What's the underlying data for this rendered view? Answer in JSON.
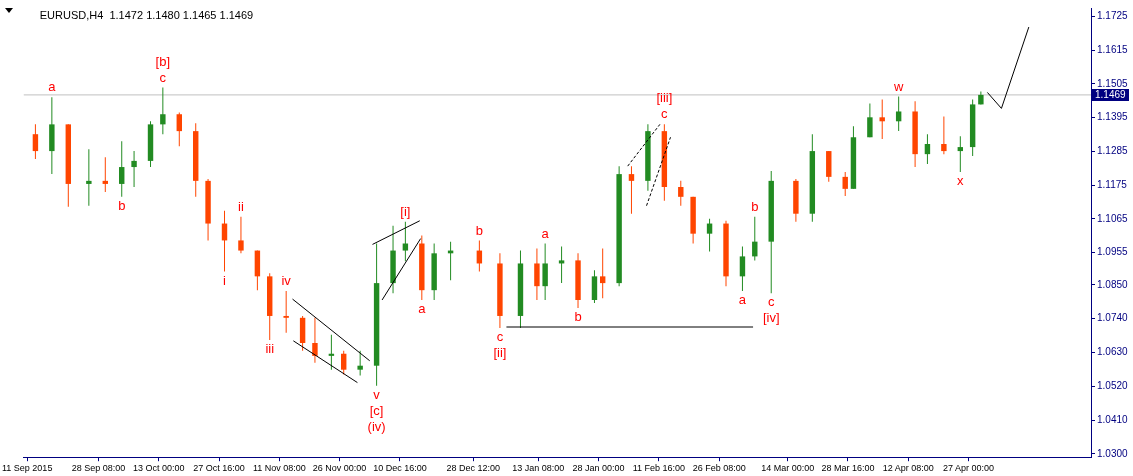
{
  "chart_data": {
    "type": "candlestick",
    "title": "EURUSD,H4  1.1472 1.1480 1.1465 1.1469",
    "x": [
      "2015-09-13",
      "2015-09-17",
      "2015-09-21",
      "2015-09-26",
      "2015-09-30",
      "2015-10-04",
      "2015-10-07",
      "2015-10-11",
      "2015-10-14",
      "2015-10-18",
      "2015-10-22",
      "2015-10-25",
      "2015-10-29",
      "2015-11-02",
      "2015-11-06",
      "2015-11-09",
      "2015-11-13",
      "2015-11-17",
      "2015-11-20",
      "2015-11-24",
      "2015-11-27",
      "2015-12-01",
      "2015-12-05",
      "2015-12-09",
      "2015-12-12",
      "2015-12-16",
      "2015-12-19",
      "2015-12-23",
      "2015-12-30",
      "2016-01-04",
      "2016-01-09",
      "2016-01-13",
      "2016-01-15",
      "2016-01-19",
      "2016-01-23",
      "2016-01-27",
      "2016-01-29",
      "2016-02-02",
      "2016-02-05",
      "2016-02-09",
      "2016-02-13",
      "2016-02-17",
      "2016-02-20",
      "2016-02-24",
      "2016-02-28",
      "2016-03-03",
      "2016-03-06",
      "2016-03-10",
      "2016-03-16",
      "2016-03-20",
      "2016-03-24",
      "2016-03-28",
      "2016-03-30",
      "2016-04-03",
      "2016-04-06",
      "2016-04-10",
      "2016-04-14",
      "2016-04-17",
      "2016-04-21",
      "2016-04-25",
      "2016-04-28",
      "2016-04-30"
    ],
    "ohlc": [
      [
        1.1341,
        1.1373,
        1.126,
        1.1286
      ],
      [
        1.1286,
        1.1461,
        1.1211,
        1.1373
      ],
      [
        1.1373,
        1.1373,
        1.1105,
        1.1179
      ],
      [
        1.1179,
        1.1292,
        1.1108,
        1.1189
      ],
      [
        1.1189,
        1.1266,
        1.1153,
        1.1179
      ],
      [
        1.1179,
        1.1318,
        1.1137,
        1.1234
      ],
      [
        1.1234,
        1.1286,
        1.1169,
        1.1254
      ],
      [
        1.1254,
        1.1383,
        1.1234,
        1.1373
      ],
      [
        1.1373,
        1.1493,
        1.1341,
        1.1406
      ],
      [
        1.1406,
        1.1412,
        1.1302,
        1.1351
      ],
      [
        1.1351,
        1.1377,
        1.1137,
        1.1189
      ],
      [
        1.1189,
        1.1195,
        1.0995,
        1.105
      ],
      [
        1.105,
        1.1092,
        1.0894,
        1.0995
      ],
      [
        1.0995,
        1.1072,
        1.0953,
        1.0962
      ],
      [
        1.0962,
        1.0962,
        1.0833,
        1.0878
      ],
      [
        1.0878,
        1.0888,
        1.0671,
        1.0749
      ],
      [
        1.0749,
        1.083,
        1.0694,
        1.0743
      ],
      [
        1.0743,
        1.0749,
        1.0636,
        1.0661
      ],
      [
        1.0661,
        1.0743,
        1.0597,
        1.0619
      ],
      [
        1.0619,
        1.0688,
        1.0574,
        1.0626
      ],
      [
        1.0626,
        1.0636,
        1.0558,
        1.0574
      ],
      [
        1.0574,
        1.0636,
        1.0555,
        1.0587
      ],
      [
        1.0587,
        1.0985,
        1.0522,
        1.0856
      ],
      [
        1.0856,
        1.1043,
        1.0823,
        1.0962
      ],
      [
        1.0962,
        1.1056,
        1.0927,
        1.0985
      ],
      [
        1.0985,
        1.1011,
        1.0801,
        1.0833
      ],
      [
        1.0833,
        1.0985,
        1.0801,
        1.0953
      ],
      [
        1.0953,
        1.0991,
        1.0865,
        1.0962
      ],
      [
        1.0962,
        1.0995,
        1.0894,
        1.092
      ],
      [
        1.092,
        1.0953,
        1.071,
        1.0749
      ],
      [
        1.0749,
        1.0962,
        1.071,
        1.092
      ],
      [
        1.092,
        1.0969,
        1.0801,
        1.0846
      ],
      [
        1.0846,
        1.0985,
        1.0801,
        1.092
      ],
      [
        1.092,
        1.0975,
        1.0856,
        1.093
      ],
      [
        1.093,
        1.0953,
        1.0775,
        1.0801
      ],
      [
        1.0801,
        1.0898,
        1.0791,
        1.0878
      ],
      [
        1.0878,
        1.0969,
        1.0807,
        1.0856
      ],
      [
        1.0856,
        1.1237,
        1.0846,
        1.1211
      ],
      [
        1.1211,
        1.1237,
        1.1082,
        1.1189
      ],
      [
        1.1189,
        1.1373,
        1.1157,
        1.1351
      ],
      [
        1.1351,
        1.1373,
        1.1124,
        1.1169
      ],
      [
        1.1169,
        1.1189,
        1.1108,
        1.1137
      ],
      [
        1.1137,
        1.1137,
        1.0985,
        1.1017
      ],
      [
        1.1017,
        1.1066,
        1.0959,
        1.105
      ],
      [
        1.105,
        1.1059,
        1.0846,
        1.0878
      ],
      [
        1.0878,
        1.0975,
        1.083,
        1.0943
      ],
      [
        1.0943,
        1.1072,
        1.093,
        1.0991
      ],
      [
        1.0991,
        1.1221,
        1.0823,
        1.1189
      ],
      [
        1.1189,
        1.1195,
        1.1056,
        1.1082
      ],
      [
        1.1082,
        1.1341,
        1.1056,
        1.1286
      ],
      [
        1.1286,
        1.1286,
        1.1186,
        1.1202
      ],
      [
        1.1202,
        1.1218,
        1.114,
        1.1163
      ],
      [
        1.1163,
        1.1367,
        1.1163,
        1.1331
      ],
      [
        1.1331,
        1.1441,
        1.1331,
        1.1396
      ],
      [
        1.1396,
        1.1454,
        1.1325,
        1.1383
      ],
      [
        1.1383,
        1.1464,
        1.1351,
        1.1415
      ],
      [
        1.1415,
        1.1448,
        1.1234,
        1.1276
      ],
      [
        1.1276,
        1.1341,
        1.1244,
        1.1309
      ],
      [
        1.1309,
        1.1399,
        1.1276,
        1.1286
      ],
      [
        1.1286,
        1.1334,
        1.1218,
        1.1299
      ],
      [
        1.1299,
        1.1454,
        1.127,
        1.1438
      ],
      [
        1.1438,
        1.148,
        1.1438,
        1.1469
      ]
    ],
    "colors": [
      "#ff4500",
      "#228b22",
      "#ff4500",
      "#228b22",
      "#ff4500",
      "#228b22",
      "#228b22",
      "#228b22",
      "#228b22",
      "#ff4500",
      "#ff4500",
      "#ff4500",
      "#ff4500",
      "#ff4500",
      "#ff4500",
      "#ff4500",
      "#ff4500",
      "#ff4500",
      "#ff4500",
      "#228b22",
      "#ff4500",
      "#228b22",
      "#228b22",
      "#228b22",
      "#228b22",
      "#ff4500",
      "#228b22",
      "#228b22",
      "#ff4500",
      "#ff4500",
      "#228b22",
      "#ff4500",
      "#228b22",
      "#228b22",
      "#ff4500",
      "#228b22",
      "#ff4500",
      "#228b22",
      "#ff4500",
      "#228b22",
      "#ff4500",
      "#ff4500",
      "#ff4500",
      "#228b22",
      "#ff4500",
      "#228b22",
      "#228b22",
      "#228b22",
      "#ff4500",
      "#228b22",
      "#ff4500",
      "#ff4500",
      "#228b22",
      "#228b22",
      "#ff4500",
      "#228b22",
      "#ff4500",
      "#228b22",
      "#ff4500",
      "#228b22",
      "#228b22",
      "#228b22"
    ],
    "series": [
      {
        "type": "line",
        "color": "#000000",
        "line_style": "solid",
        "x": [
          "2015-11-14T13:00",
          "2015-12-03T08:00"
        ],
        "values": [
          1.0804,
          1.0603
        ]
      },
      {
        "type": "line",
        "color": "#000000",
        "line_style": "solid",
        "x": [
          "2015-11-14T18:00",
          "2015-11-30T08:00"
        ],
        "values": [
          1.0668,
          1.0532
        ]
      },
      {
        "type": "line",
        "color": "#000000",
        "line_style": "solid",
        "x": [
          "2015-12-04",
          "2015-12-15T12:00"
        ],
        "values": [
          1.0982,
          1.1059
        ]
      },
      {
        "type": "line",
        "color": "#000000",
        "line_style": "solid",
        "x": [
          "2015-12-06T08:00",
          "2015-12-15T17:00"
        ],
        "values": [
          1.0801,
          1.1001
        ]
      },
      {
        "type": "line",
        "color": "#000000",
        "line_style": "dashed",
        "x": [
          "2016-02-04T02:00",
          "2016-02-11T22:00"
        ],
        "values": [
          1.1237,
          1.1373
        ]
      },
      {
        "type": "line",
        "color": "#000000",
        "line_style": "dashed",
        "x": [
          "2016-02-08T16:00",
          "2016-02-14T12:00"
        ],
        "values": [
          1.1108,
          1.1331
        ]
      },
      {
        "type": "line",
        "color": "#000000",
        "line_style": "solid",
        "x": [
          "2016-01-05T14:00",
          "2016-03-05T14:00"
        ],
        "values": [
          1.0713,
          1.0713
        ]
      },
      {
        "type": "line",
        "color": "#000000",
        "line_style": "solid",
        "x": [
          "2016-05-01T14:00",
          "2016-05-05",
          "2016-05-11T16:00"
        ],
        "values": [
          1.1477,
          1.1425,
          1.169
        ]
      }
    ],
    "ref_lines": [
      {
        "axis": "y",
        "value": 1.1469,
        "label": "1.1469",
        "color": "#c0c0c0"
      }
    ],
    "annotations": [
      {
        "text": "a",
        "x": "2015-09-17",
        "y": 1.1461
      },
      {
        "text": "b",
        "x": "2015-10-04",
        "y": 1.1137
      },
      {
        "text": "c",
        "x": "2015-10-14",
        "y": 1.1493
      },
      {
        "text": "[b]",
        "x": "2015-10-14",
        "y": 1.1493
      },
      {
        "text": "ii",
        "x": "2015-11-02",
        "y": 1.1072
      },
      {
        "text": "i",
        "x": "2015-10-29",
        "y": 1.0894
      },
      {
        "text": "iv",
        "x": "2015-11-13",
        "y": 1.083
      },
      {
        "text": "iii",
        "x": "2015-11-09",
        "y": 1.0671
      },
      {
        "text": "v",
        "x": "2015-12-05",
        "y": 1.0522
      },
      {
        "text": "[c]",
        "x": "2015-12-05",
        "y": 1.0522
      },
      {
        "text": "(iv)",
        "x": "2015-12-05",
        "y": 1.0522
      },
      {
        "text": "[i]",
        "x": "2015-12-12",
        "y": 1.1056
      },
      {
        "text": "a",
        "x": "2015-12-16",
        "y": 1.0801
      },
      {
        "text": "b",
        "x": "2015-12-30",
        "y": 1.0995
      },
      {
        "text": "c",
        "x": "2016-01-04",
        "y": 1.071
      },
      {
        "text": "[ii]",
        "x": "2016-01-04",
        "y": 1.071
      },
      {
        "text": "a",
        "x": "2016-01-15",
        "y": 1.0985
      },
      {
        "text": "b",
        "x": "2016-01-23",
        "y": 1.0775
      },
      {
        "text": "c",
        "x": "2016-02-13",
        "y": 1.1373
      },
      {
        "text": "[iii]",
        "x": "2016-02-13",
        "y": 1.1373
      },
      {
        "text": "a",
        "x": "2016-03-03",
        "y": 1.083
      },
      {
        "text": "b",
        "x": "2016-03-06",
        "y": 1.1072
      },
      {
        "text": "c",
        "x": "2016-03-10",
        "y": 1.0823
      },
      {
        "text": "[iv]",
        "x": "2016-03-10",
        "y": 1.0823
      },
      {
        "text": "w",
        "x": "2016-04-10",
        "y": 1.1464
      },
      {
        "text": "x",
        "x": "2016-04-25",
        "y": 1.1218
      }
    ],
    "xlim": [
      "2015-09-10T04:00",
      "2016-05-26T19:00"
    ],
    "xticks": [
      {
        "value": "2015-09-11",
        "label": "11 Sep 2015"
      },
      {
        "value": "2015-09-28T08:00",
        "label": "28 Sep 08:00"
      },
      {
        "value": "2015-10-13",
        "label": "13 Oct 00:00"
      },
      {
        "value": "2015-10-27T16:00",
        "label": "27 Oct 16:00"
      },
      {
        "value": "2015-11-11T08:00",
        "label": "11 Nov 08:00"
      },
      {
        "value": "2015-11-26",
        "label": "26 Nov 00:00"
      },
      {
        "value": "2015-12-10T16:00",
        "label": "10 Dec 16:00"
      },
      {
        "value": "2015-12-28T12:00",
        "label": "28 Dec 12:00"
      },
      {
        "value": "2016-01-13T08:00",
        "label": "13 Jan 08:00"
      },
      {
        "value": "2016-01-28",
        "label": "28 Jan 00:00"
      },
      {
        "value": "2016-02-11T16:00",
        "label": "11 Feb 16:00"
      },
      {
        "value": "2016-02-26T08:00",
        "label": "26 Feb 08:00"
      },
      {
        "value": "2016-03-14",
        "label": "14 Mar 00:00"
      },
      {
        "value": "2016-03-28T16:00",
        "label": "28 Mar 16:00"
      },
      {
        "value": "2016-04-12T08:00",
        "label": "12 Apr 08:00"
      },
      {
        "value": "2016-04-27",
        "label": "27 Apr 00:00"
      }
    ],
    "ylim": [
      1.0289,
      1.1752
    ],
    "yticks": [
      {
        "value": 1.03,
        "label": "1.0300"
      },
      {
        "value": 1.041,
        "label": "1.0410"
      },
      {
        "value": 1.052,
        "label": "1.0520"
      },
      {
        "value": 1.063,
        "label": "1.0630"
      },
      {
        "value": 1.074,
        "label": "1.0740"
      },
      {
        "value": 1.085,
        "label": "1.0850"
      },
      1.0955,
      1.1065,
      1.1175,
      1.1285,
      1.1395,
      1.1505,
      1.1615,
      1.1725
    ],
    "grid": false,
    "legend": false
  }
}
